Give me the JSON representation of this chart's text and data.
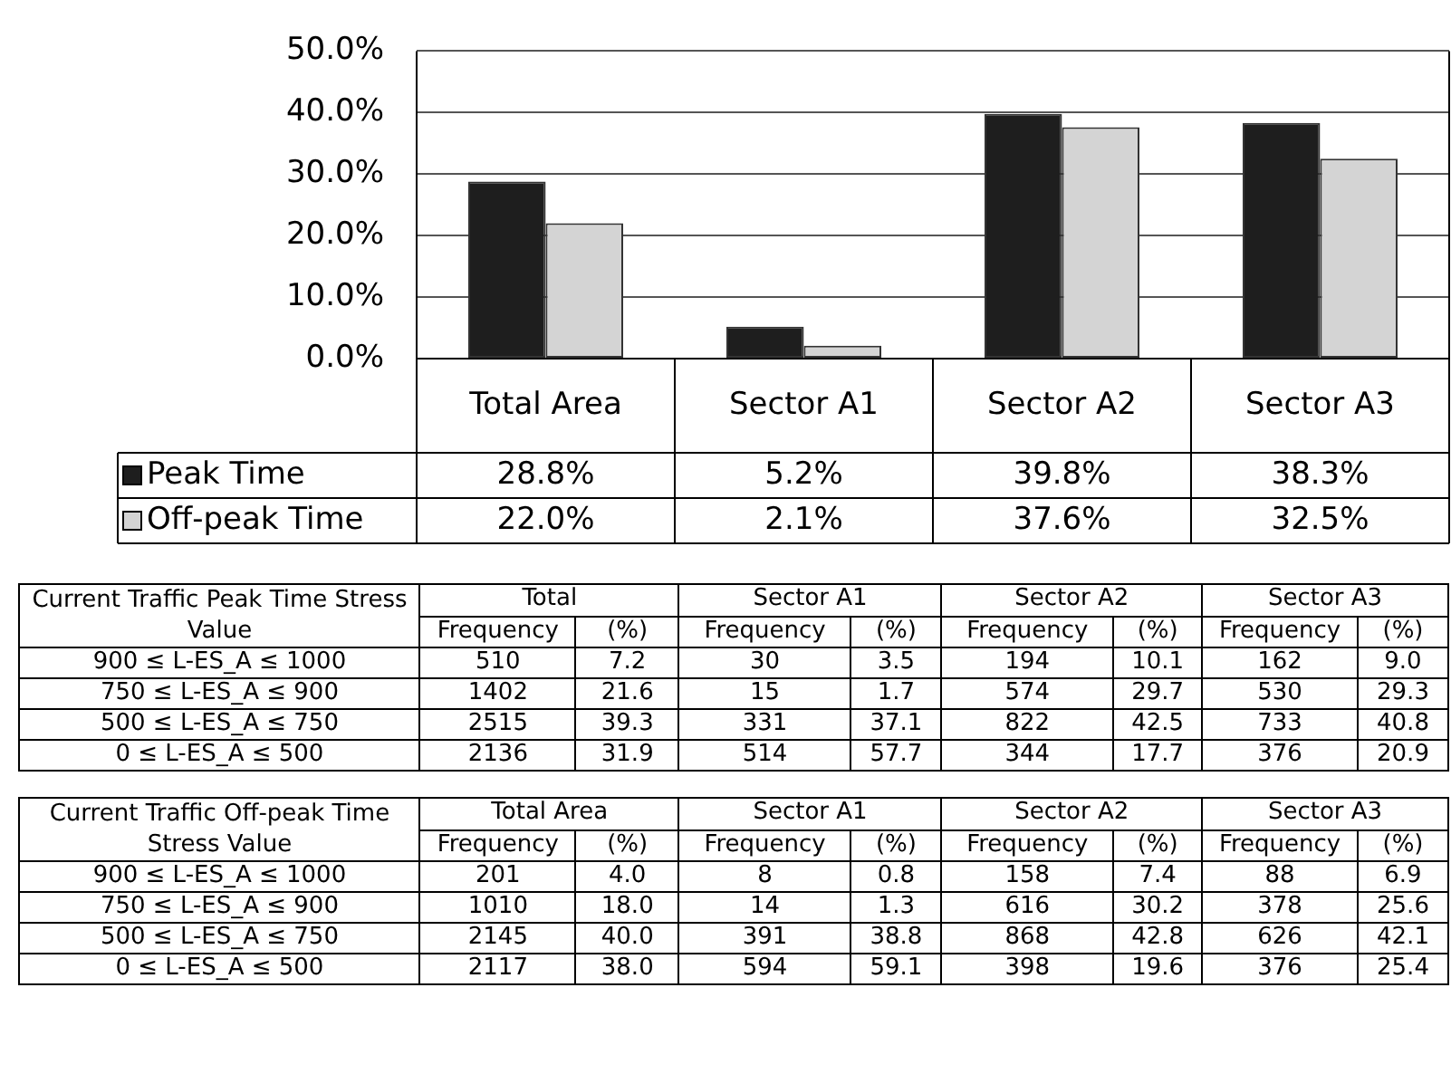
{
  "chart_data": [
    {
      "type": "bar",
      "categories": [
        "Total Area",
        "Sector A1",
        "Sector A2",
        "Sector A3"
      ],
      "series": [
        {
          "name": "Peak Time",
          "color": "#1e1e1e",
          "values": [
            28.8,
            5.2,
            39.8,
            38.3
          ],
          "value_labels": [
            "28.8%",
            "5.2%",
            "39.8%",
            "38.3%"
          ]
        },
        {
          "name": "Off-peak Time",
          "color": "#d4d4d4",
          "values": [
            22.0,
            2.1,
            37.6,
            32.5
          ],
          "value_labels": [
            "22.0%",
            "2.1%",
            "37.6%",
            "32.5%"
          ]
        }
      ],
      "ylim": [
        0,
        50
      ],
      "yticks": [
        {
          "value": 0,
          "label": "0.0%"
        },
        {
          "value": 10,
          "label": "10.0%"
        },
        {
          "value": 20,
          "label": "20.0%"
        },
        {
          "value": 30,
          "label": "30.0%"
        },
        {
          "value": 40,
          "label": "40.0%"
        },
        {
          "value": 50,
          "label": "50.0%"
        }
      ],
      "grid": "y",
      "legend": "bottom left"
    },
    {
      "type": "other",
      "annotations": [
        "Current Traffic Peak Time Stress Value",
        "Total",
        "Sector A1",
        "Sector A2",
        "Sector A3",
        "Frequency",
        "(%)",
        "Frequency",
        "(%)",
        "Frequency",
        "(%)",
        "Frequency",
        "(%)",
        "900 ≤ L-ES_A ≤ 1000",
        "510",
        "7.2",
        "30",
        "3.5",
        "194",
        "10.1",
        "162",
        "9.0",
        "750 ≤ L-ES_A ≤ 900",
        "1402",
        "21.6",
        "15",
        "1.7",
        "574",
        "29.7",
        "530",
        "29.3",
        "500 ≤ L-ES_A ≤ 750",
        "2515",
        "39.3",
        "331",
        "37.1",
        "822",
        "42.5",
        "733",
        "40.8",
        "0 ≤ L-ES_A ≤ 500",
        "2136",
        "31.9",
        "514",
        "57.7",
        "344",
        "17.7",
        "376",
        "20.9"
      ]
    },
    {
      "type": "other",
      "annotations": [
        "Current Traffic Off-peak Time Stress Value",
        "Total Area",
        "Sector A1",
        "Sector A2",
        "Sector A3",
        "Frequency",
        "(%)",
        "Frequency",
        "(%)",
        "Frequency",
        "(%)",
        "Frequency",
        "(%)",
        "900 ≤ L-ES_A ≤ 1000",
        "201",
        "4.0",
        "8",
        "0.8",
        "158",
        "7.4",
        "88",
        "6.9",
        "750 ≤ L-ES_A ≤ 900",
        "1010",
        "18.0",
        "14",
        "1.3",
        "616",
        "30.2",
        "378",
        "25.6",
        "500 ≤ L-ES_A ≤ 750",
        "2145",
        "40.0",
        "391",
        "38.8",
        "868",
        "42.8",
        "626",
        "42.1",
        "0 ≤ L-ES_A ≤ 500",
        "2117",
        "38.0",
        "594",
        "59.1",
        "398",
        "19.6",
        "376",
        "25.4"
      ]
    }
  ]
}
